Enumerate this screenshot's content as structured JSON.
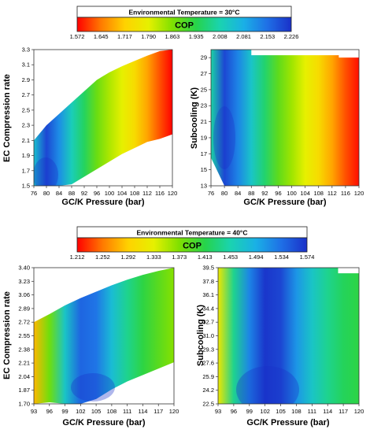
{
  "colorbar_stops": [
    "#ff0000",
    "#ff7a00",
    "#ffd200",
    "#e6f000",
    "#7fe000",
    "#26d34a",
    "#1ad3b0",
    "#1ab0e6",
    "#1f6fe6",
    "#1a30c8"
  ],
  "chart_data": [
    {
      "type": "heatmap",
      "legend_header": "Environmental Temperature = 30°C",
      "colorbar_label": "COP",
      "colorbar_ticks": [
        "1.572",
        "1.645",
        "1.717",
        "1.790",
        "1.863",
        "1.935",
        "2.008",
        "2.081",
        "2.153",
        "2.226"
      ],
      "colorbar_range": [
        1.572,
        2.226
      ],
      "panels": [
        {
          "xlabel": "GC/K Pressure (bar)",
          "ylabel": "EC Compression rate",
          "xlim": [
            76,
            120
          ],
          "ylim": [
            1.5,
            3.3
          ],
          "xticks": [
            "76",
            "80",
            "84",
            "88",
            "92",
            "96",
            "100",
            "104",
            "108",
            "112",
            "116",
            "120"
          ],
          "yticks": [
            "1.5",
            "1.7",
            "1.9",
            "2.1",
            "2.3",
            "2.5",
            "2.7",
            "2.9",
            "3.1",
            "3.3"
          ],
          "x": [
            76,
            80,
            84,
            88,
            92,
            96,
            100,
            104,
            108,
            112,
            116,
            120
          ],
          "y_bottom": [
            null,
            1.5,
            1.5,
            1.52,
            1.62,
            1.72,
            1.82,
            1.92,
            2.0,
            2.08,
            2.12,
            2.18
          ],
          "y_top": [
            2.1,
            2.3,
            2.45,
            2.6,
            2.75,
            2.9,
            3.0,
            3.08,
            3.15,
            3.22,
            3.28,
            3.3
          ],
          "cop_by_x": [
            2.05,
            2.2,
            2.12,
            2.02,
            1.95,
            1.88,
            1.83,
            1.79,
            1.74,
            1.68,
            1.62,
            1.57
          ]
        },
        {
          "xlabel": "GC/K Pressure (bar)",
          "ylabel": "Subcooling (K)",
          "xlim": [
            76,
            120
          ],
          "ylim": [
            13,
            30
          ],
          "xticks": [
            "76",
            "80",
            "84",
            "88",
            "92",
            "96",
            "100",
            "104",
            "108",
            "112",
            "116",
            "120"
          ],
          "yticks": [
            "13",
            "15",
            "17",
            "19",
            "21",
            "23",
            "25",
            "27",
            "29"
          ],
          "x": [
            76,
            80,
            84,
            88,
            92,
            96,
            100,
            104,
            108,
            112,
            116,
            120
          ],
          "cop_by_x": [
            2.0,
            2.2,
            2.13,
            2.04,
            1.96,
            1.89,
            1.84,
            1.79,
            1.74,
            1.68,
            1.62,
            1.58
          ]
        }
      ]
    },
    {
      "type": "heatmap",
      "legend_header": "Environmental Temperature = 40°C",
      "colorbar_label": "COP",
      "colorbar_ticks": [
        "1.212",
        "1.252",
        "1.292",
        "1.333",
        "1.373",
        "1.413",
        "1.453",
        "1.494",
        "1.534",
        "1.574"
      ],
      "colorbar_range": [
        1.212,
        1.574
      ],
      "panels": [
        {
          "xlabel": "GC/K Pressure (bar)",
          "ylabel": "EC Compression rate",
          "xlim": [
            93,
            120
          ],
          "ylim": [
            1.7,
            3.4
          ],
          "xticks": [
            "93",
            "96",
            "99",
            "102",
            "105",
            "108",
            "111",
            "114",
            "117",
            "120"
          ],
          "yticks": [
            "1.70",
            "1.87",
            "2.04",
            "2.21",
            "2.38",
            "2.55",
            "2.72",
            "2.89",
            "3.06",
            "3.23",
            "3.40"
          ],
          "x": [
            93,
            96,
            99,
            102,
            105,
            108,
            111,
            114,
            117,
            120
          ],
          "y_bottom": [
            null,
            1.72,
            1.7,
            1.7,
            1.76,
            1.88,
            1.98,
            2.06,
            2.14,
            2.22
          ],
          "y_top": [
            2.72,
            2.82,
            2.93,
            3.02,
            3.1,
            3.18,
            3.25,
            3.31,
            3.36,
            3.4
          ],
          "cop_by_x": [
            1.28,
            1.38,
            1.47,
            1.54,
            1.53,
            1.48,
            1.44,
            1.41,
            1.39,
            1.37
          ]
        },
        {
          "xlabel": "GC/K Pressure (bar)",
          "ylabel": "Subcooling (K)",
          "xlim": [
            93,
            120
          ],
          "ylim": [
            22.5,
            39.5
          ],
          "xticks": [
            "93",
            "96",
            "99",
            "102",
            "105",
            "108",
            "111",
            "114",
            "117",
            "120"
          ],
          "yticks": [
            "22.5",
            "24.2",
            "25.9",
            "27.6",
            "29.3",
            "31.0",
            "32.7",
            "34.4",
            "36.1",
            "37.8",
            "39.5"
          ],
          "x": [
            93,
            96,
            99,
            102,
            105,
            108,
            111,
            114,
            117,
            120
          ],
          "cop_by_x": [
            1.32,
            1.44,
            1.52,
            1.57,
            1.56,
            1.51,
            1.47,
            1.44,
            1.42,
            1.41
          ]
        }
      ]
    }
  ]
}
